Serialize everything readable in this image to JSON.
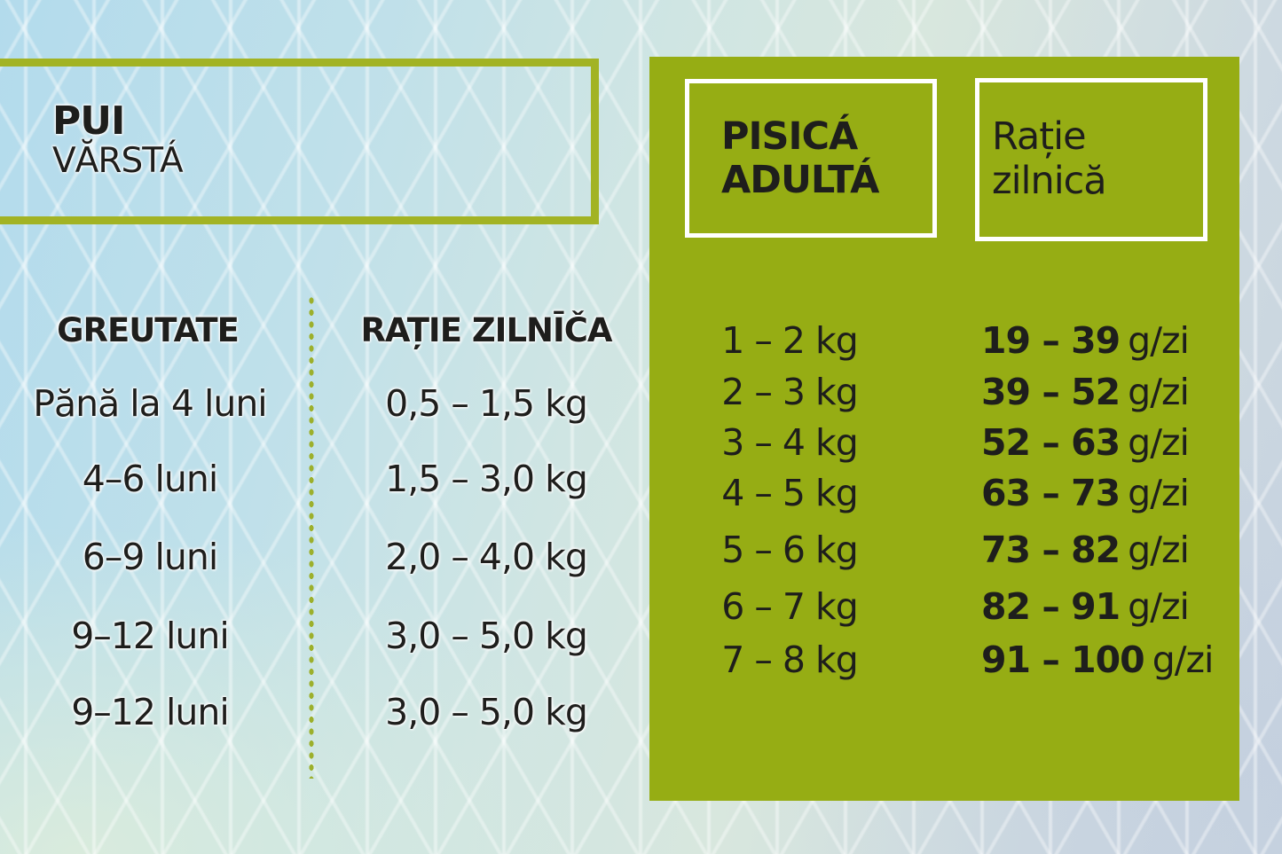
{
  "colors": {
    "panel_green": "#96ad14",
    "box_border_olive": "#a2b324",
    "divider_dot_olive": "#9cb02c",
    "inner_box_border_white": "#ffffff",
    "text_black": "#1e1e1c",
    "bg_blue_top_left": "#b3dbec",
    "bg_mint_bottom_left": "#dbecdc",
    "bg_gray_blue_right": "#c7d3df",
    "mesh_line_white": "rgba(255,255,255,0.4)"
  },
  "kitten_table": {
    "box_title": "PUI",
    "box_subtitle": "VĂRSTÁ",
    "col_weight_header": "GREUTATE",
    "col_ration_header": "RAȚIE ZILNĪČA",
    "rows": [
      {
        "age": "Pănă la 4 luni",
        "ration": "0,5 – 1,5 kg"
      },
      {
        "age": "4–6 luni",
        "ration": "1,5 – 3,0 kg"
      },
      {
        "age": "6–9 luni",
        "ration": "2,0 – 4,0 kg"
      },
      {
        "age": "9–12 luni",
        "ration": "3,0 – 5,0 kg"
      },
      {
        "age": "9–12 luni",
        "ration": "3,0 – 5,0 kg"
      }
    ]
  },
  "adult_table": {
    "box_title_line1": "PISICÁ",
    "box_title_line2": "ADULTÁ",
    "col_ration_line1": "Rație",
    "col_ration_line2": "zilnică",
    "rows": [
      {
        "weight": "1 – 2 kg",
        "ration_value": "19 – 39",
        "ration_unit": "g/zi"
      },
      {
        "weight": "2 – 3 kg",
        "ration_value": "39 – 52",
        "ration_unit": "g/zi"
      },
      {
        "weight": "3 – 4 kg",
        "ration_value": "52 – 63",
        "ration_unit": "g/zi"
      },
      {
        "weight": "4 – 5 kg",
        "ration_value": "63 – 73",
        "ration_unit": "g/zi"
      },
      {
        "weight": "5 – 6 kg",
        "ration_value": "73 – 82",
        "ration_unit": "g/zi"
      },
      {
        "weight": "6 – 7 kg",
        "ration_value": "82 – 91",
        "ration_unit": "g/zi"
      },
      {
        "weight": "7 – 8 kg",
        "ration_value": "91 – 100",
        "ration_unit": "g/zi"
      }
    ]
  },
  "chart_data": [
    {
      "type": "table",
      "title": "PUI — VĂRSTÁ",
      "columns": [
        "GREUTATE",
        "RAȚIE ZILNĪČA"
      ],
      "rows": [
        [
          "Pănă la 4 luni",
          "0,5 – 1,5 kg"
        ],
        [
          "4–6 luni",
          "1,5 – 3,0 kg"
        ],
        [
          "6–9 luni",
          "2,0 – 4,0 kg"
        ],
        [
          "9–12 luni",
          "3,0 – 5,0 kg"
        ],
        [
          "9–12 luni",
          "3,0 – 5,0 kg"
        ]
      ]
    },
    {
      "type": "table",
      "title": "PISICÁ ADULTÁ — Rație zilnică",
      "columns": [
        "PISICÁ ADULTÁ",
        "Rație zilnică"
      ],
      "rows": [
        [
          "1 – 2 kg",
          "19 – 39 g/zi"
        ],
        [
          "2 – 3 kg",
          "39 – 52 g/zi"
        ],
        [
          "3 – 4 kg",
          "52 – 63 g/zi"
        ],
        [
          "4 – 5 kg",
          "63 – 73 g/zi"
        ],
        [
          "5 – 6 kg",
          "73 – 82 g/zi"
        ],
        [
          "6 – 7 kg",
          "82 – 91 g/zi"
        ],
        [
          "7 – 8 kg",
          "91 – 100 g/zi"
        ]
      ]
    }
  ]
}
